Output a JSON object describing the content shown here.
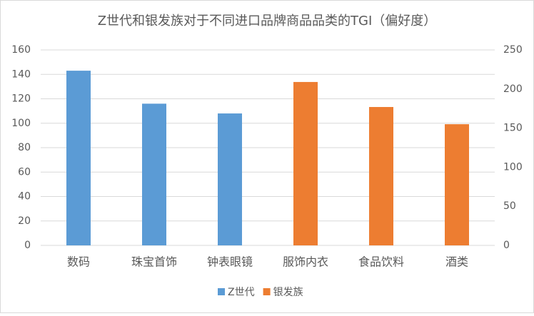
{
  "chart_data": {
    "type": "bar",
    "title": "Z世代和银发族对于不同进口品牌商品品类的TGI（偏好度）",
    "categories": [
      "数码",
      "珠宝首饰",
      "钟表眼镜",
      "服饰内衣",
      "食品饮料",
      "酒类"
    ],
    "series": [
      {
        "name": "Z世代",
        "color": "#5b9bd5",
        "values": [
          143,
          116,
          108,
          null,
          null,
          null
        ]
      },
      {
        "name": "银发族",
        "color": "#ed7d31",
        "axis": "y2",
        "values": [
          null,
          null,
          null,
          209,
          177,
          155
        ]
      }
    ],
    "ylim": [
      0,
      160
    ],
    "yticks": [
      0,
      20,
      40,
      60,
      80,
      100,
      120,
      140,
      160
    ],
    "y2lim": [
      0,
      250
    ],
    "y2ticks": [
      0,
      50,
      100,
      150,
      200,
      250
    ],
    "grid": true,
    "legend": "bottom"
  }
}
